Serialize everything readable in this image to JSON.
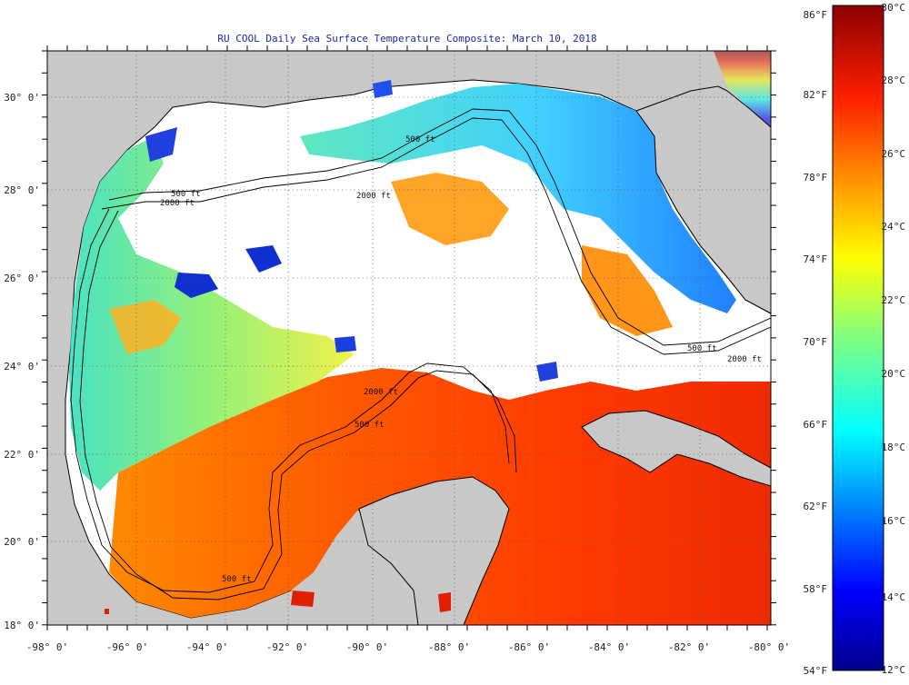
{
  "title": "RU COOL Daily Sea Surface Temperature Composite:  March 10, 2018",
  "map": {
    "lon_ticks": [
      "-98° 0'",
      "-96° 0'",
      "-94° 0'",
      "-92° 0'",
      "-90° 0'",
      "-88° 0'",
      "-86° 0'",
      "-84° 0'",
      "-82° 0'",
      "-80° 0'"
    ],
    "lat_ticks": [
      "30° 0'",
      "28° 0'",
      "26° 0'",
      "24° 0'",
      "22° 0'",
      "20° 0'",
      "18° 0'"
    ],
    "contour_labels": [
      "2000 ft",
      "500 ft",
      "2000 ft",
      "500 ft",
      "500 ft",
      "2000 ft",
      "500 ft",
      "2000 ft",
      "500 ft"
    ]
  },
  "colorbar": {
    "fahrenheit_labels": [
      "86°F",
      "82°F",
      "78°F",
      "74°F",
      "70°F",
      "66°F",
      "62°F",
      "58°F",
      "54°F"
    ],
    "celsius_labels": [
      "30°C",
      "28°C",
      "26°C",
      "24°C",
      "22°C",
      "20°C",
      "18°C",
      "16°C",
      "14°C",
      "12°C"
    ]
  },
  "colors": {
    "land": "#c8c8c8",
    "no_data": "#ffffff",
    "scale_cold": "#00008c",
    "scale_warm": "#8c0000"
  }
}
